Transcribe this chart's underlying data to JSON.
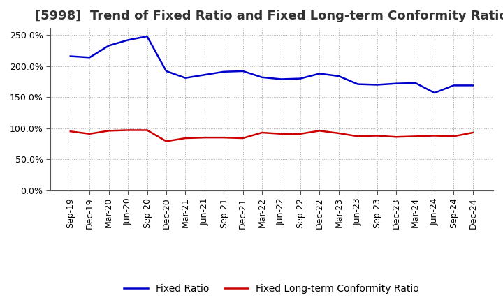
{
  "title": "[5998]  Trend of Fixed Ratio and Fixed Long-term Conformity Ratio",
  "x_labels": [
    "Sep-19",
    "Dec-19",
    "Mar-20",
    "Jun-20",
    "Sep-20",
    "Dec-20",
    "Mar-21",
    "Jun-21",
    "Sep-21",
    "Dec-21",
    "Mar-22",
    "Jun-22",
    "Sep-22",
    "Dec-22",
    "Mar-23",
    "Jun-23",
    "Sep-23",
    "Dec-23",
    "Mar-24",
    "Jun-24",
    "Sep-24",
    "Dec-24"
  ],
  "fixed_ratio": [
    216,
    214,
    233,
    242,
    248,
    192,
    181,
    186,
    191,
    192,
    182,
    179,
    180,
    188,
    184,
    171,
    170,
    172,
    173,
    157,
    169,
    169
  ],
  "fixed_lt_ratio": [
    95,
    91,
    96,
    97,
    97,
    79,
    84,
    85,
    85,
    84,
    93,
    91,
    91,
    96,
    92,
    87,
    88,
    86,
    87,
    88,
    87,
    93
  ],
  "fixed_ratio_color": "#0000CC",
  "fixed_lt_ratio_color": "#CC0000",
  "background_color": "#FFFFFF",
  "plot_bg_color": "#FFFFFF",
  "grid_color": "#AAAAAA",
  "ylim": [
    0,
    262
  ],
  "yticks": [
    0,
    50,
    100,
    150,
    200,
    250
  ],
  "ytick_labels": [
    "0.0%",
    "50.0%",
    "100.0%",
    "150.0%",
    "200.0%",
    "250.0%"
  ],
  "legend_fixed_ratio": "Fixed Ratio",
  "legend_fixed_lt_ratio": "Fixed Long-term Conformity Ratio",
  "title_fontsize": 13,
  "tick_fontsize": 9,
  "legend_fontsize": 10,
  "line_width": 1.8
}
